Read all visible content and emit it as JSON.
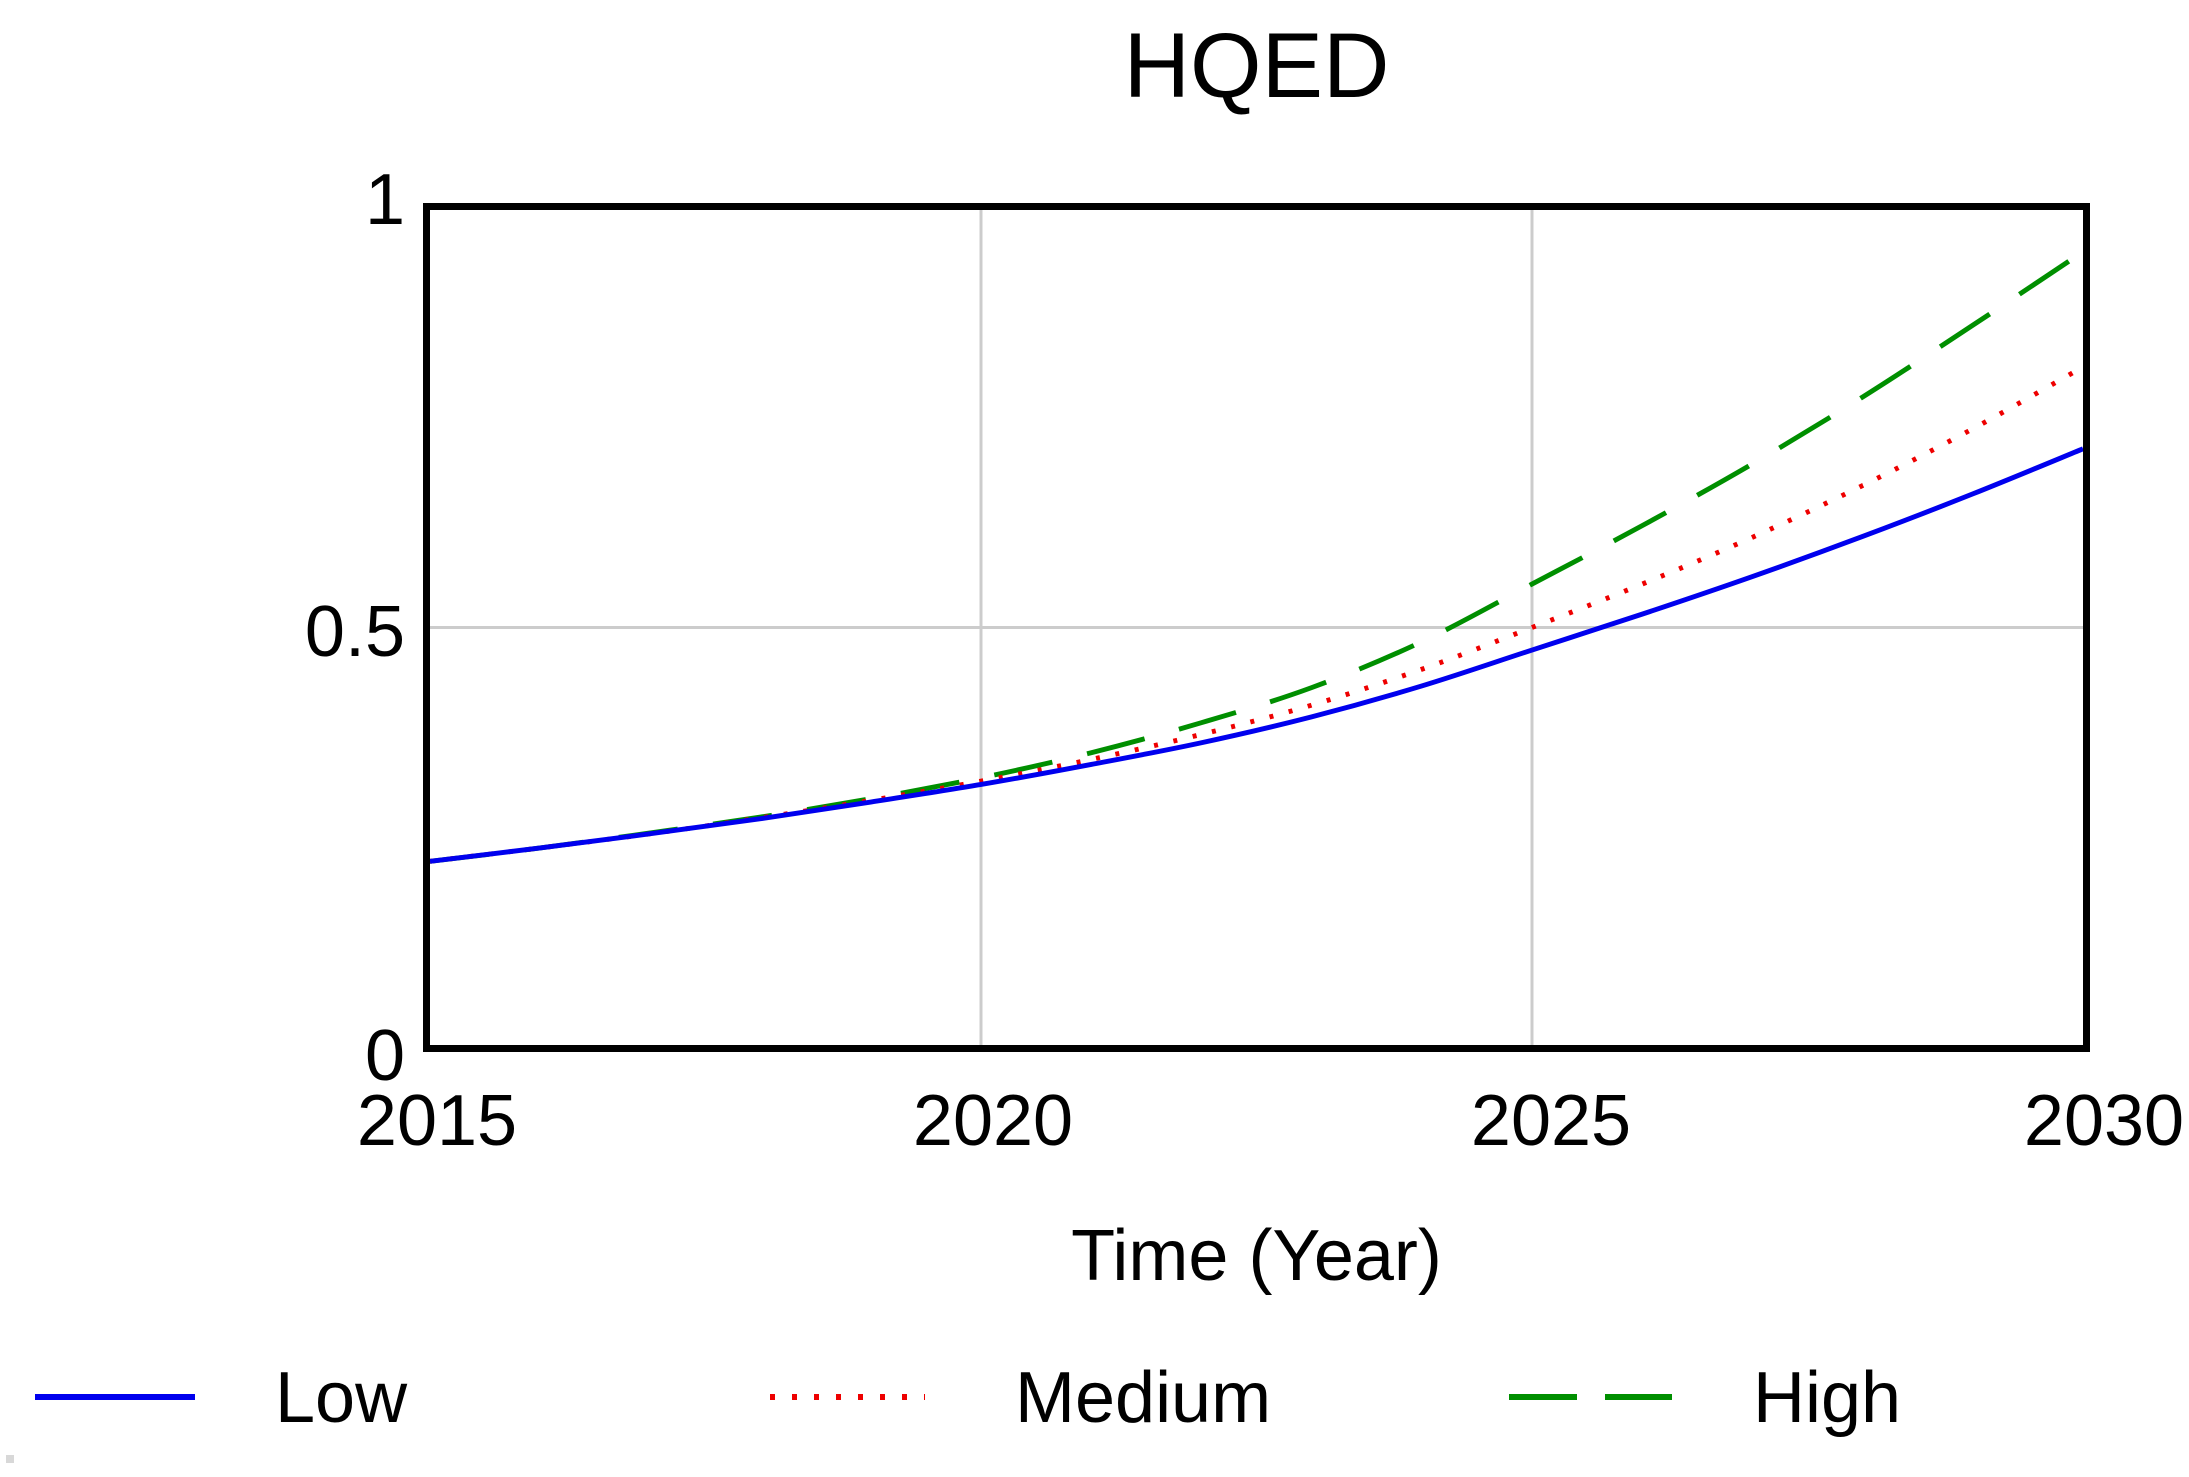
{
  "title": "HQED",
  "x_axis": {
    "label": "Time (Year)",
    "ticks": [
      "2015",
      "2020",
      "2025",
      "2030"
    ]
  },
  "y_axis": {
    "ticks": [
      "1",
      "0.5",
      "0"
    ]
  },
  "legend": {
    "position": "bottom",
    "items": [
      {
        "label": "Low",
        "color": "#0000ee",
        "style": "solid"
      },
      {
        "label": "Medium",
        "color": "#ee0000",
        "style": "dotted"
      },
      {
        "label": "High",
        "color": "#008f00",
        "style": "dashed"
      }
    ]
  },
  "colors": {
    "frame": "#000000",
    "gridline": "#cccccc",
    "background": "#ffffff",
    "low": "#0000ee",
    "medium": "#ee0000",
    "high": "#008f00"
  },
  "chart_data": {
    "type": "line",
    "title": "HQED",
    "xlabel": "Time (Year)",
    "ylabel": "",
    "xlim": [
      2015,
      2030
    ],
    "ylim": [
      0,
      1
    ],
    "x_ticks": [
      2015,
      2020,
      2025,
      2030
    ],
    "y_ticks": [
      0,
      0.5,
      1
    ],
    "x_gridlines": [
      2020,
      2025
    ],
    "y_gridlines": [
      0.5
    ],
    "grid": true,
    "legend_position": "bottom",
    "x": [
      2015,
      2016,
      2017,
      2018,
      2019,
      2020,
      2021,
      2022,
      2023,
      2024,
      2025,
      2026,
      2027,
      2028,
      2029,
      2030
    ],
    "series": [
      {
        "name": "Low",
        "color": "#0000ee",
        "style": "solid",
        "values": [
          0.22,
          0.236,
          0.253,
          0.271,
          0.291,
          0.312,
          0.336,
          0.362,
          0.393,
          0.43,
          0.473,
          0.516,
          0.561,
          0.609,
          0.66,
          0.714
        ]
      },
      {
        "name": "Medium",
        "color": "#ee0000",
        "style": "dotted",
        "values": [
          0.22,
          0.236,
          0.253,
          0.272,
          0.293,
          0.316,
          0.342,
          0.372,
          0.407,
          0.45,
          0.5,
          0.552,
          0.608,
          0.67,
          0.738,
          0.812
        ]
      },
      {
        "name": "High",
        "color": "#008f00",
        "style": "dashed",
        "values": [
          0.22,
          0.236,
          0.254,
          0.273,
          0.295,
          0.32,
          0.35,
          0.386,
          0.428,
          0.483,
          0.552,
          0.622,
          0.696,
          0.776,
          0.862,
          0.95
        ]
      }
    ]
  }
}
